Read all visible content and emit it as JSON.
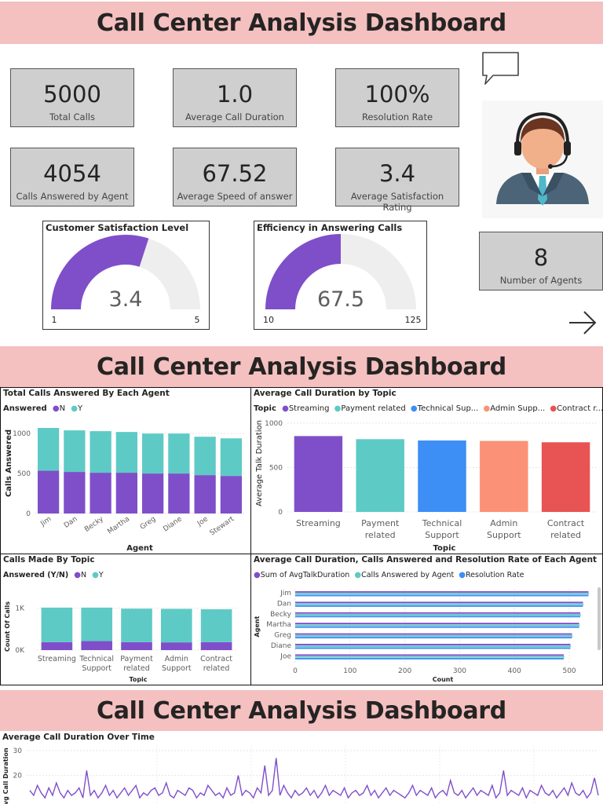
{
  "banners": [
    "Call Center Analysis Dashboard",
    "Call Center Analysis Dashboard",
    "Call Center Analysis Dashboard"
  ],
  "kpis": [
    {
      "value": "5000",
      "label": "Total Calls"
    },
    {
      "value": "1.0",
      "label": "Average Call Duration"
    },
    {
      "value": "100%",
      "label": "Resolution Rate"
    },
    {
      "value": "4054",
      "label": "Calls Answered by Agent"
    },
    {
      "value": "67.52",
      "label": "Average Speed of answer"
    },
    {
      "value": "3.4",
      "label": "Average Satisfaction Rating"
    },
    {
      "value": "8",
      "label": "Number of Agents"
    }
  ],
  "icons": {
    "chat": "chat-bubble-icon",
    "agent": "headset-agent-avatar",
    "next": "arrow-right-icon"
  },
  "colors": {
    "purple": "#7f4fc9",
    "teal": "#5ecac5",
    "blue": "#3d8ef5",
    "salmon": "#fb9176",
    "red": "#e85353",
    "banner": "#f4c0c0",
    "kpi_bg": "#cfcfcf",
    "gauge_track": "#efeeee"
  },
  "chart_data": [
    {
      "type": "gauge",
      "title": "Customer Satisfaction Level",
      "value": 3.4,
      "value_label": "3.4",
      "min": 1,
      "max": 5,
      "min_label": "1",
      "max_label": "5"
    },
    {
      "type": "gauge",
      "title": "Efficiency in Answering Calls",
      "value": 67.5,
      "value_label": "67.5",
      "min": 10,
      "max": 125,
      "min_label": "10",
      "max_label": "125"
    },
    {
      "type": "bar",
      "stacked": true,
      "title": "Total Calls Answered By Each Agent",
      "legend_title": "Answered",
      "categories": [
        "Jim",
        "Dan",
        "Becky",
        "Martha",
        "Greg",
        "Diane",
        "Joe",
        "Stewart"
      ],
      "series": [
        {
          "name": "N",
          "values": [
            535,
            520,
            510,
            510,
            500,
            500,
            480,
            470
          ]
        },
        {
          "name": "Y",
          "values": [
            535,
            520,
            520,
            510,
            500,
            500,
            480,
            470
          ]
        }
      ],
      "xlabel": "Agent",
      "ylabel": "Calls Answered",
      "ylim": [
        0,
        1100
      ],
      "yticks": [
        "0",
        "500",
        "1000"
      ]
    },
    {
      "type": "bar",
      "title": "Average Call Duration by Topic",
      "legend_title": "Topic",
      "categories": [
        "Streaming",
        "Payment related",
        "Technical Support",
        "Admin Support",
        "Contract related"
      ],
      "legend_labels": [
        "Streaming",
        "Payment related",
        "Technical Sup...",
        "Admin Supp...",
        "Contract r..."
      ],
      "values": [
        855,
        820,
        805,
        800,
        785
      ],
      "xlabel": "Topic",
      "ylabel": "Average Talk Duration",
      "ylim": [
        0,
        1000
      ],
      "yticks": [
        "0",
        "500",
        "1000"
      ]
    },
    {
      "type": "bar",
      "stacked": true,
      "title": "Calls Made By Topic",
      "legend_title": "Answered (Y/N)",
      "categories": [
        "Streaming",
        "Technical Support",
        "Payment related",
        "Admin Support",
        "Contract related"
      ],
      "series": [
        {
          "name": "N",
          "values": [
            190,
            215,
            190,
            185,
            190
          ]
        },
        {
          "name": "Y",
          "values": [
            825,
            800,
            800,
            800,
            785
          ]
        }
      ],
      "xlabel": "Topic",
      "ylabel": "Count Of Calls",
      "ylim": [
        0,
        1200
      ],
      "yticks": [
        "0K",
        "1K"
      ]
    },
    {
      "type": "bar",
      "orientation": "horizontal",
      "title": "Average Call Duration, Calls Answered and Resolution Rate of Each Agent",
      "categories": [
        "Jim",
        "Dan",
        "Becky",
        "Martha",
        "Greg",
        "Diane",
        "Joe"
      ],
      "series": [
        {
          "name": "Sum of AvgTalkDuration",
          "values": [
            535,
            525,
            520,
            518,
            505,
            502,
            490
          ]
        },
        {
          "name": "Calls Answered by Agent",
          "values": [
            536,
            526,
            521,
            519,
            506,
            503,
            491
          ]
        },
        {
          "name": "Resolution Rate",
          "values": [
            535,
            525,
            520,
            518,
            505,
            502,
            490
          ]
        }
      ],
      "xlabel": "Count",
      "ylabel": "Agent",
      "xlim": [
        0,
        540
      ],
      "xticks": [
        "0",
        "100",
        "200",
        "300",
        "400",
        "500"
      ]
    },
    {
      "type": "line",
      "title": "Average Call Duration Over Time",
      "ylabel": "Avg Call Duration",
      "ylim": [
        0,
        30
      ],
      "yticks": [
        "20",
        "30"
      ],
      "values": [
        14,
        12,
        16,
        13,
        11,
        15,
        12,
        17,
        13,
        11,
        14,
        12,
        13,
        15,
        11,
        22,
        12,
        14,
        11,
        13,
        16,
        12,
        14,
        11,
        13,
        15,
        12,
        14,
        16,
        11,
        13,
        12,
        14,
        15,
        12,
        13,
        17,
        12,
        11,
        14,
        13,
        12,
        15,
        14,
        11,
        13,
        12,
        16,
        14,
        12,
        13,
        11,
        15,
        12,
        13,
        20,
        12,
        14,
        13,
        11,
        15,
        13,
        24,
        12,
        14,
        27,
        12,
        16,
        13,
        11,
        14,
        12,
        13,
        15,
        12,
        14,
        11,
        13,
        16,
        12,
        14,
        13,
        12,
        15,
        11,
        13,
        14,
        12,
        13,
        16,
        12,
        14,
        11,
        13,
        15,
        12,
        14,
        13,
        12,
        11,
        13,
        16,
        12,
        14,
        13,
        12,
        15,
        11,
        13,
        14,
        12,
        18,
        13,
        12,
        14,
        11,
        13,
        15,
        12,
        14,
        13,
        12,
        16,
        11,
        13,
        22,
        12,
        14,
        13,
        12,
        15,
        11,
        14,
        13,
        12,
        16,
        13,
        12,
        14,
        11,
        13,
        15,
        12,
        17,
        13,
        12,
        14,
        11,
        13,
        19,
        12
      ]
    }
  ]
}
